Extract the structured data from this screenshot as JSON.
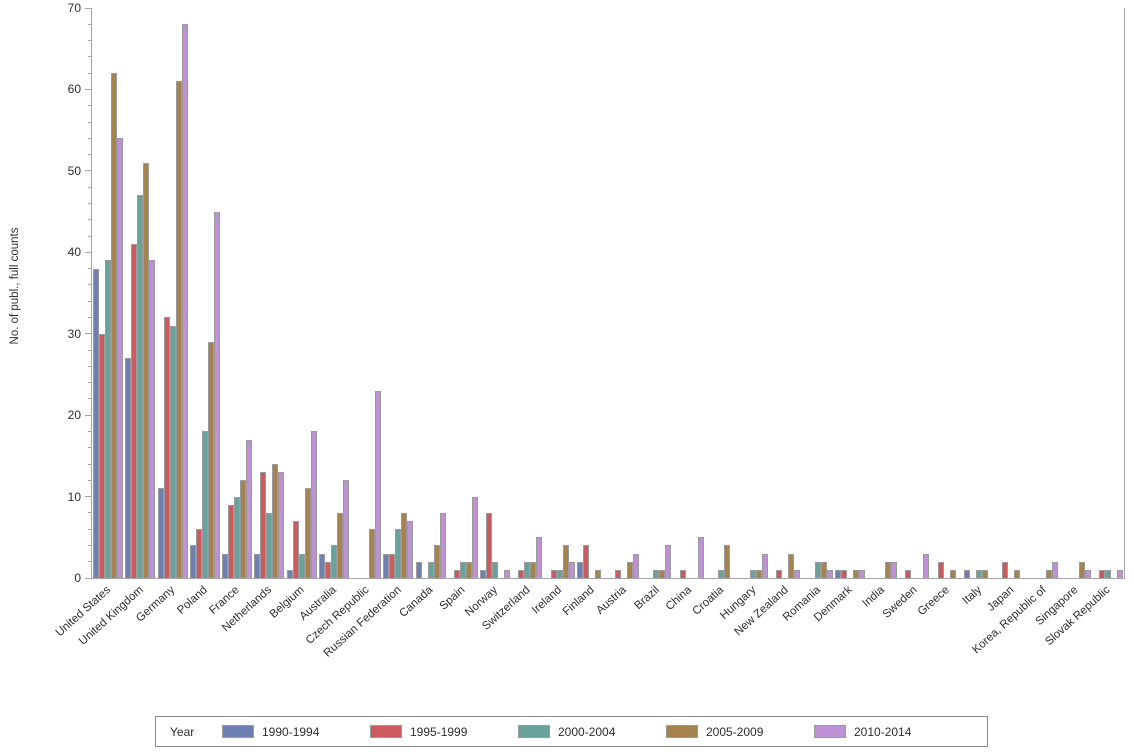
{
  "chart_data": {
    "type": "bar",
    "title": "",
    "ylabel": "No. of publ., full counts",
    "xlabel": "",
    "ylim": [
      0,
      70
    ],
    "ytick_step": 10,
    "ytick_minor_step": 2,
    "grid": false,
    "legend_title": "Year",
    "legend_position": "bottom",
    "categories": [
      "United States",
      "United Kingdom",
      "Germany",
      "Poland",
      "France",
      "Netherlands",
      "Belgium",
      "Australia",
      "Czech Republic",
      "Russian Federation",
      "Canada",
      "Spain",
      "Norway",
      "Switzerland",
      "Ireland",
      "Finland",
      "Austria",
      "Brazil",
      "China",
      "Croatia",
      "Hungary",
      "New Zealand",
      "Romania",
      "Denmark",
      "India",
      "Sweden",
      "Greece",
      "Italy",
      "Japan",
      "Korea, Republic of",
      "Singapore",
      "Slovak Republic"
    ],
    "series": [
      {
        "name": "1990-1994",
        "color": "#6f7eb3",
        "values": [
          38,
          27,
          11,
          4,
          3,
          3,
          1,
          3,
          0,
          3,
          2,
          0,
          1,
          0,
          0,
          2,
          0,
          0,
          0,
          0,
          0,
          0,
          0,
          1,
          0,
          0,
          0,
          1,
          0,
          0,
          0,
          0
        ]
      },
      {
        "name": "1995-1999",
        "color": "#cb5b5e",
        "values": [
          30,
          41,
          32,
          6,
          9,
          13,
          7,
          2,
          0,
          3,
          0,
          1,
          8,
          1,
          1,
          4,
          1,
          0,
          1,
          0,
          0,
          1,
          0,
          1,
          0,
          1,
          2,
          0,
          2,
          0,
          0,
          1
        ]
      },
      {
        "name": "2000-2004",
        "color": "#67a29b",
        "values": [
          39,
          47,
          31,
          18,
          10,
          8,
          3,
          4,
          0,
          6,
          2,
          2,
          2,
          2,
          1,
          0,
          0,
          1,
          0,
          1,
          1,
          0,
          2,
          0,
          0,
          0,
          0,
          1,
          0,
          0,
          0,
          1
        ]
      },
      {
        "name": "2005-2009",
        "color": "#a5824e",
        "values": [
          62,
          51,
          61,
          29,
          12,
          14,
          11,
          8,
          6,
          8,
          4,
          2,
          0,
          2,
          4,
          1,
          2,
          1,
          0,
          4,
          1,
          3,
          2,
          1,
          2,
          0,
          1,
          1,
          1,
          1,
          2,
          0
        ]
      },
      {
        "name": "2010-2014",
        "color": "#be90d4",
        "values": [
          54,
          39,
          68,
          45,
          17,
          13,
          18,
          12,
          23,
          7,
          8,
          10,
          1,
          5,
          2,
          0,
          3,
          4,
          5,
          0,
          3,
          1,
          1,
          1,
          2,
          3,
          0,
          0,
          0,
          2,
          1,
          1
        ]
      }
    ]
  },
  "colors": {
    "axis": "#a6a6a6",
    "bar_border": "#9b9b9b",
    "text": "#2e2e2e",
    "legend_border": "#8a8a8a",
    "background": "#ffffff"
  }
}
